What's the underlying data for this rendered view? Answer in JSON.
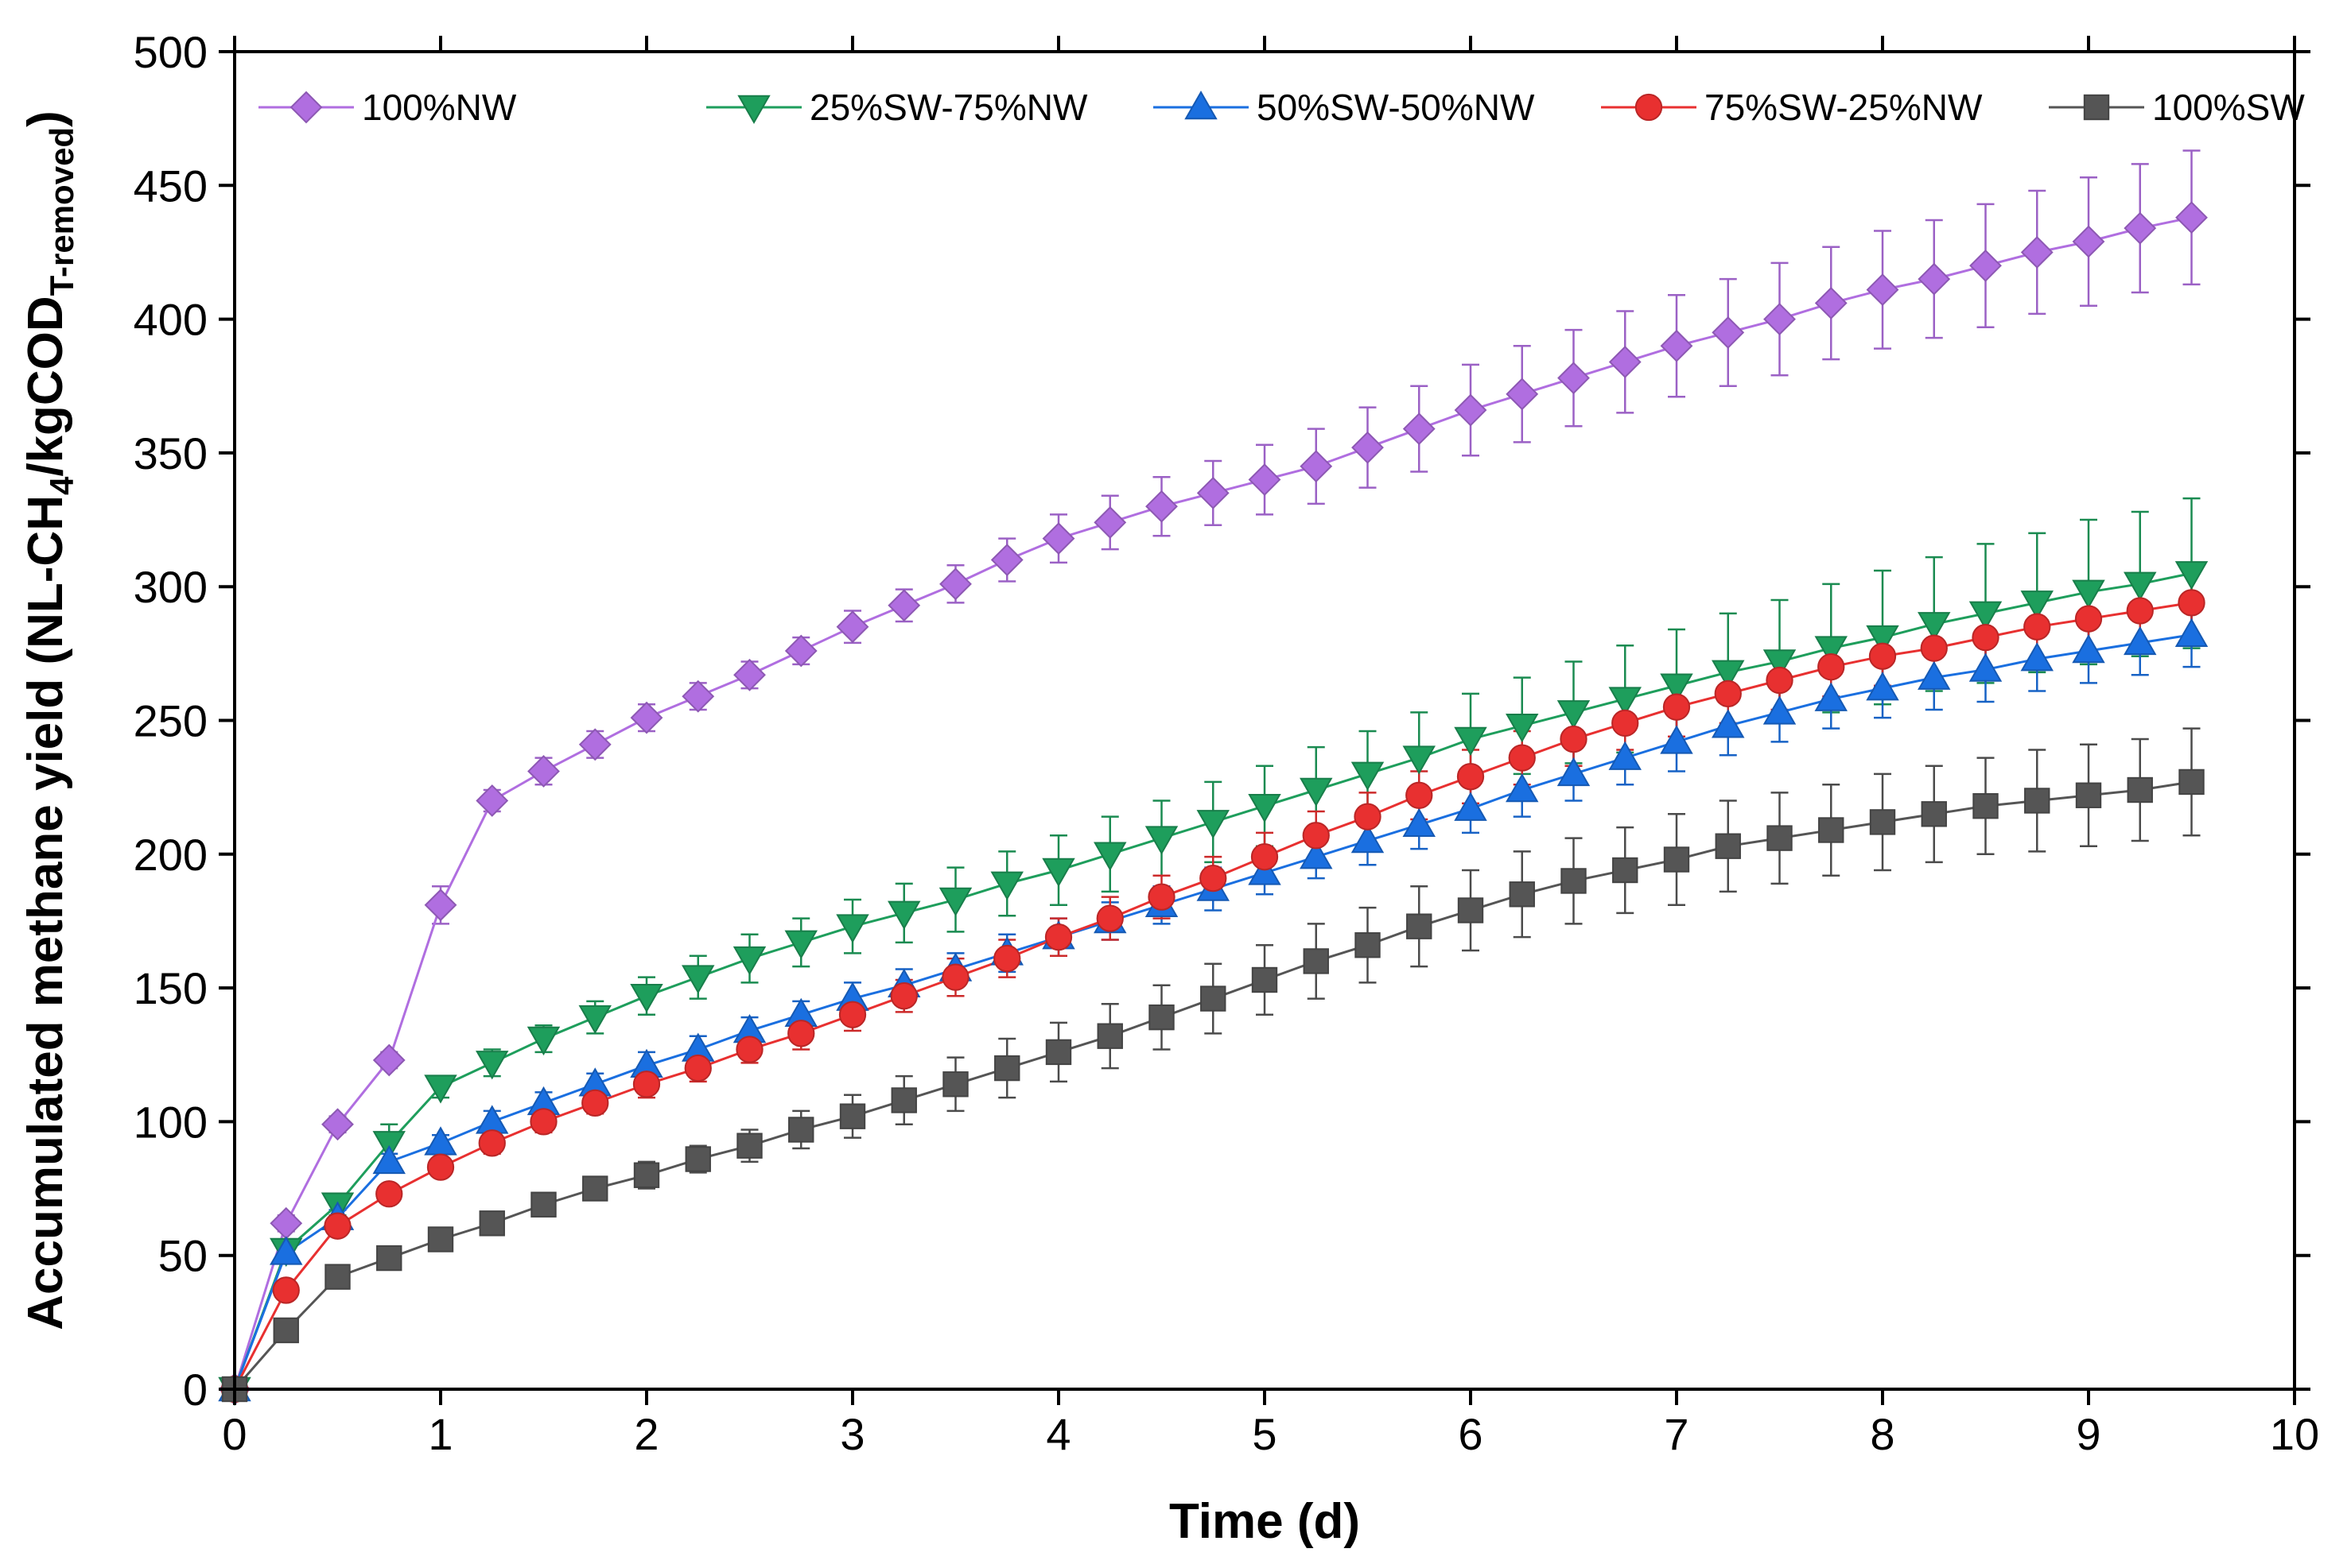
{
  "chart_data": {
    "type": "line",
    "title": "",
    "xlabel": "Time (d)",
    "ylabel": {
      "text": "Accumulated methane yield (NL-CH",
      "sub1": "4",
      "mid": "/kgCOD",
      "sub2": "T-removed",
      "end": ")"
    },
    "xlim": [
      0,
      10
    ],
    "ylim": [
      0,
      500
    ],
    "xticks": [
      0,
      1,
      2,
      3,
      4,
      5,
      6,
      7,
      8,
      9,
      10
    ],
    "yticks": [
      0,
      50,
      100,
      150,
      200,
      250,
      300,
      350,
      400,
      450,
      500
    ],
    "grid": false,
    "legend_position": "top",
    "x": [
      0,
      0.25,
      0.5,
      0.75,
      1,
      1.25,
      1.5,
      1.75,
      2,
      2.25,
      2.5,
      2.75,
      3,
      3.25,
      3.5,
      3.75,
      4,
      4.25,
      4.5,
      4.75,
      5,
      5.25,
      5.5,
      5.75,
      6,
      6.25,
      6.5,
      6.75,
      7,
      7.25,
      7.5,
      7.75,
      8,
      8.25,
      8.5,
      8.75,
      9,
      9.25,
      9.5
    ],
    "series": [
      {
        "name": "100%NW",
        "color": "#b06ee0",
        "marker": "diamond",
        "values": [
          0,
          62,
          99,
          123,
          181,
          220,
          231,
          241,
          251,
          259,
          267,
          276,
          285,
          293,
          301,
          310,
          318,
          324,
          330,
          335,
          340,
          345,
          352,
          359,
          366,
          372,
          378,
          384,
          390,
          395,
          400,
          406,
          411,
          415,
          420,
          425,
          429,
          434,
          438
        ],
        "errors": [
          0,
          3,
          3,
          3,
          7,
          4,
          5,
          5,
          5,
          5,
          5,
          5,
          6,
          6,
          7,
          8,
          9,
          10,
          11,
          12,
          13,
          14,
          15,
          16,
          17,
          18,
          18,
          19,
          19,
          20,
          21,
          21,
          22,
          22,
          23,
          23,
          24,
          24,
          25
        ]
      },
      {
        "name": "25%SW-75%NW",
        "color": "#1e9e5c",
        "marker": "triangle-down",
        "values": [
          0,
          52,
          69,
          92,
          113,
          122,
          131,
          139,
          147,
          154,
          161,
          167,
          173,
          178,
          183,
          189,
          194,
          200,
          206,
          212,
          218,
          224,
          230,
          236,
          243,
          248,
          253,
          258,
          263,
          268,
          272,
          277,
          281,
          286,
          290,
          294,
          298,
          301,
          305
        ],
        "errors": [
          0,
          3,
          4,
          7,
          4,
          5,
          5,
          6,
          7,
          8,
          9,
          9,
          10,
          11,
          12,
          12,
          13,
          14,
          14,
          15,
          15,
          16,
          16,
          17,
          17,
          18,
          19,
          20,
          21,
          22,
          23,
          24,
          25,
          25,
          26,
          26,
          27,
          27,
          28
        ]
      },
      {
        "name": "50%SW-50%NW",
        "color": "#1a6fe0",
        "marker": "triangle-up",
        "values": [
          0,
          51,
          64,
          85,
          92,
          100,
          107,
          114,
          121,
          127,
          134,
          140,
          146,
          151,
          157,
          163,
          169,
          175,
          181,
          187,
          193,
          199,
          205,
          211,
          217,
          224,
          230,
          236,
          242,
          248,
          253,
          258,
          262,
          266,
          269,
          273,
          276,
          279,
          282
        ],
        "errors": [
          0,
          3,
          3,
          3,
          3,
          4,
          4,
          4,
          5,
          5,
          5,
          5,
          6,
          6,
          6,
          7,
          7,
          7,
          7,
          8,
          8,
          8,
          9,
          9,
          9,
          10,
          10,
          10,
          11,
          11,
          11,
          11,
          11,
          12,
          12,
          12,
          12,
          12,
          12
        ]
      },
      {
        "name": "75%SW-25%NW",
        "color": "#e83030",
        "marker": "circle",
        "values": [
          0,
          37,
          61,
          73,
          83,
          92,
          100,
          107,
          114,
          120,
          127,
          133,
          140,
          147,
          154,
          161,
          169,
          176,
          184,
          191,
          199,
          207,
          214,
          222,
          229,
          236,
          243,
          249,
          255,
          260,
          265,
          270,
          274,
          277,
          281,
          285,
          288,
          291,
          294
        ],
        "errors": [
          0,
          3,
          3,
          3,
          3,
          4,
          4,
          4,
          5,
          5,
          5,
          6,
          6,
          6,
          7,
          7,
          7,
          8,
          8,
          8,
          9,
          9,
          9,
          9,
          10,
          10,
          10,
          10,
          11,
          11,
          11,
          11,
          11,
          12,
          12,
          12,
          12,
          12,
          12
        ]
      },
      {
        "name": "100%SW",
        "color": "#555555",
        "marker": "square",
        "values": [
          0,
          22,
          42,
          49,
          56,
          62,
          69,
          75,
          80,
          86,
          91,
          97,
          102,
          108,
          114,
          120,
          126,
          132,
          139,
          146,
          153,
          160,
          166,
          173,
          179,
          185,
          190,
          194,
          198,
          203,
          206,
          209,
          212,
          215,
          218,
          220,
          222,
          224,
          227
        ],
        "errors": [
          0,
          3,
          3,
          3,
          3,
          3,
          4,
          4,
          5,
          5,
          6,
          7,
          8,
          9,
          10,
          11,
          11,
          12,
          12,
          13,
          13,
          14,
          14,
          15,
          15,
          16,
          16,
          16,
          17,
          17,
          17,
          17,
          18,
          18,
          18,
          19,
          19,
          19,
          20
        ]
      }
    ]
  }
}
